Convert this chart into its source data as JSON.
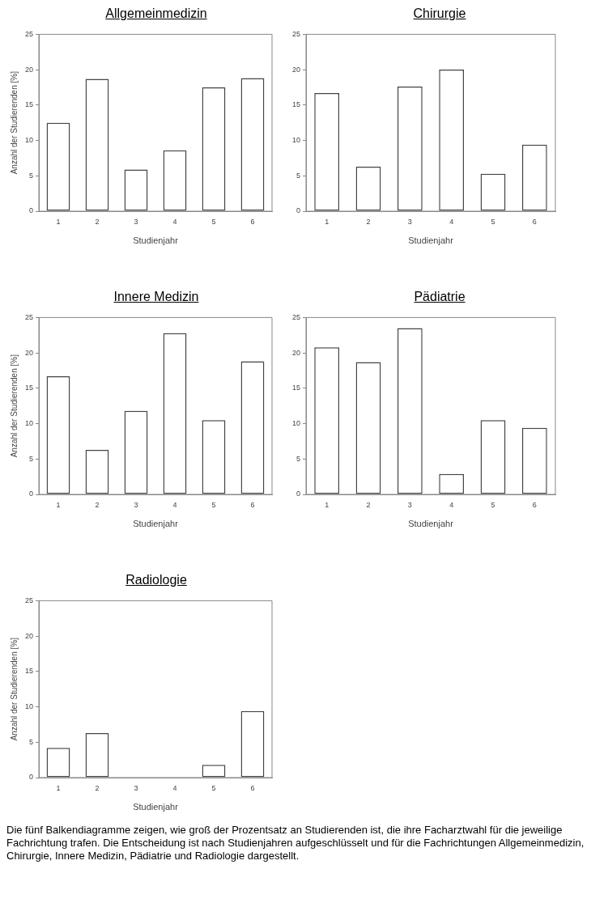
{
  "chart_data": [
    {
      "type": "bar",
      "title": "Allgemeinmedizin",
      "xlabel": "Studienjahr",
      "ylabel": "Anzahl der Studierenden [%]",
      "categories": [
        "1",
        "2",
        "3",
        "4",
        "5",
        "6"
      ],
      "values": [
        12.5,
        18.7,
        5.9,
        8.6,
        17.5,
        18.8
      ],
      "color": "#ffffff",
      "ylim": [
        0,
        25
      ],
      "yticks": [
        0,
        5,
        10,
        15,
        20,
        25
      ]
    },
    {
      "type": "bar",
      "title": "Chirurgie",
      "xlabel": "Studienjahr",
      "categories": [
        "1",
        "2",
        "3",
        "4",
        "5",
        "6"
      ],
      "values": [
        16.7,
        6.3,
        17.6,
        20.0,
        5.3,
        9.4
      ],
      "color": "#ffffff",
      "ylim": [
        0,
        25
      ],
      "yticks": [
        0,
        5,
        10,
        15,
        20,
        25
      ]
    },
    {
      "type": "bar",
      "title": "Innere Medizin",
      "xlabel": "Studienjahr",
      "ylabel": "Anzahl der Studierenden [%]",
      "categories": [
        "1",
        "2",
        "3",
        "4",
        "5",
        "6"
      ],
      "values": [
        16.7,
        6.3,
        11.8,
        22.8,
        10.5,
        18.8
      ],
      "color": "#ffffff",
      "ylim": [
        0,
        25
      ],
      "yticks": [
        0,
        5,
        10,
        15,
        20,
        25
      ]
    },
    {
      "type": "bar",
      "title": "Pädiatrie",
      "xlabel": "Studienjahr",
      "categories": [
        "1",
        "2",
        "3",
        "4",
        "5",
        "6"
      ],
      "values": [
        20.8,
        18.7,
        23.5,
        2.9,
        10.5,
        9.4
      ],
      "color": "#ffffff",
      "ylim": [
        0,
        25
      ],
      "yticks": [
        0,
        5,
        10,
        15,
        20,
        25
      ]
    },
    {
      "type": "bar",
      "title": "Radiologie",
      "xlabel": "Studienjahr",
      "ylabel": "Anzahl der Studierenden [%]",
      "categories": [
        "1",
        "2",
        "3",
        "4",
        "5",
        "6"
      ],
      "values": [
        4.2,
        6.3,
        0,
        0,
        1.8,
        9.4
      ],
      "color": "#ffffff",
      "ylim": [
        0,
        25
      ],
      "yticks": [
        0,
        5,
        10,
        15,
        20,
        25
      ],
      "annotations": [
        "Die fünf Balkendiagramme zeigen, wie groß der Prozentsatz an Studierenden ist, die ihre Facharztwahl für die jeweilige Fachrichtung trafen. Die Entscheidung ist nach Studienjahren aufgeschlüsselt und für die Fachrichtungen Allgemeinmedizin, Chirurgie, Innere Medizin, Pädiatrie und Radiologie dargestellt."
      ]
    }
  ]
}
